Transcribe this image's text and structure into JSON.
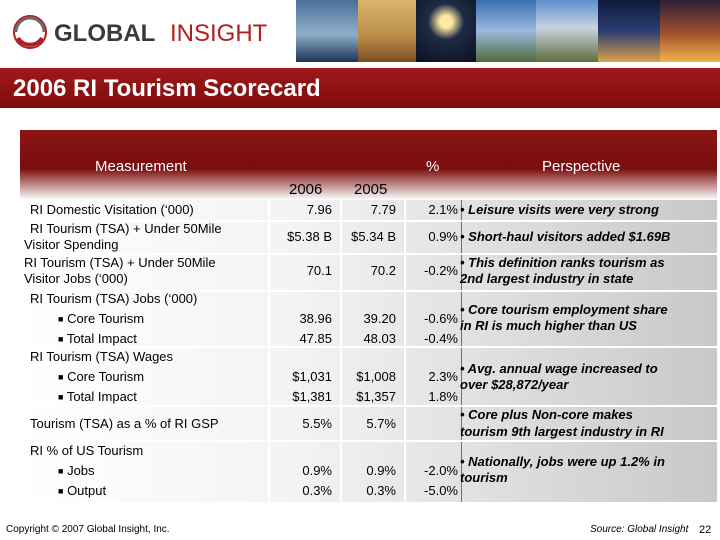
{
  "header": {
    "logo_global": "GLOBAL",
    "logo_insight": "INSIGHT",
    "title": "2006 RI Tourism Scorecard"
  },
  "colors": {
    "brand_red": "#8c1515",
    "logo_gray": "#3a3a3a",
    "logo_red": "#b01e1e"
  },
  "table": {
    "col_measurement": "Measurement",
    "col_pct": "%",
    "col_perspective": "Perspective",
    "year_2006": "2006",
    "year_2005": "2005",
    "rows": [
      {
        "label_lines": [
          "RI Domestic Visitation (‘000)"
        ],
        "v2006": "7.96",
        "v2005": "7.79",
        "pct": "2.1%",
        "perspective": [
          "• Leisure visits were very strong"
        ]
      },
      {
        "label_lines": [
          "RI Tourism (TSA) + Under 50Mile",
          "Visitor Spending"
        ],
        "v2006": "$5.38 B",
        "v2005": "$5.34 B",
        "pct": "0.9%",
        "perspective": [
          "• Short-haul visitors added $1.69B"
        ]
      },
      {
        "label_lines": [
          "RI Tourism (TSA) + Under 50Mile",
          "Visitor Jobs (‘000)"
        ],
        "v2006": "70.1",
        "v2005": "70.2",
        "pct": "-0.2%",
        "perspective": [
          "• This definition ranks tourism as",
          "2nd largest industry in state"
        ]
      },
      {
        "label_lines": [
          "RI Tourism (TSA) Jobs (‘000)"
        ],
        "sub": [
          {
            "label": "Core Tourism",
            "v2006": "38.96",
            "v2005": "39.20",
            "pct": "-0.6%"
          },
          {
            "label": "Total Impact",
            "v2006": "47.85",
            "v2005": "48.03",
            "pct": "-0.4%"
          }
        ],
        "perspective": [
          "• Core tourism employment share",
          "in RI is much higher than US"
        ]
      },
      {
        "label_lines": [
          "RI Tourism (TSA) Wages"
        ],
        "sub": [
          {
            "label": "Core Tourism",
            "v2006": "$1,031",
            "v2005": "$1,008",
            "pct": "2.3%"
          },
          {
            "label": "Total Impact",
            "v2006": "$1,381",
            "v2005": "$1,357",
            "pct": "1.8%"
          }
        ],
        "perspective": [
          "• Avg. annual wage increased to",
          "over $28,872/year"
        ]
      },
      {
        "label_lines": [
          "Tourism (TSA) as a % of  RI GSP"
        ],
        "v2006": "5.5%",
        "v2005": "5.7%",
        "pct": "",
        "perspective": [
          "• Core plus Non-core makes",
          "tourism 9th largest industry in RI"
        ]
      },
      {
        "label_lines": [
          "RI % of US Tourism"
        ],
        "sub": [
          {
            "label": "Jobs",
            "v2006": "0.9%",
            "v2005": "0.9%",
            "pct": "-2.0%"
          },
          {
            "label": "Output",
            "v2006": "0.3%",
            "v2005": "0.3%",
            "pct": "-5.0%"
          }
        ],
        "perspective": [
          "• Nationally, jobs were up 1.2% in",
          "tourism"
        ]
      }
    ]
  },
  "footer": {
    "copyright": "Copyright © 2007 Global Insight, Inc.",
    "source": "Source:  Global Insight",
    "page": "22"
  }
}
